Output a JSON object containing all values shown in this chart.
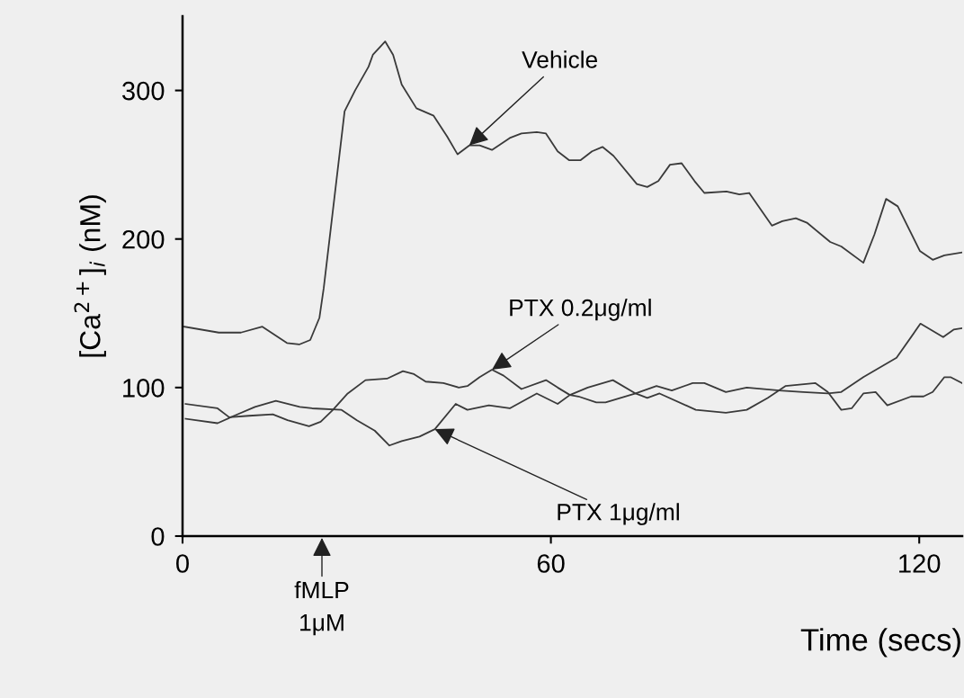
{
  "chart_data": {
    "type": "line",
    "xlabel": "Time (secs)",
    "ylabel": "[Ca$^{2+}$]$_{i}$ (nM)",
    "xlim": [
      0,
      127
    ],
    "ylim": [
      0,
      350
    ],
    "xticks": [
      0,
      60,
      120
    ],
    "yticks": [
      0,
      100,
      200,
      300
    ],
    "grid": false,
    "legend": false,
    "marker": "none",
    "line_style": "solid",
    "series": [
      {
        "color": "#3a3a3a",
        "x": [
          0.3,
          5.9,
          9.5,
          13,
          17,
          19,
          20.8,
          22.3,
          23,
          26.4,
          28.1,
          30.3,
          31,
          33,
          34.3,
          35.7,
          38.1,
          40.9,
          43.1,
          44.8,
          46.7,
          48.4,
          50.4,
          53.3,
          55.2,
          57.7,
          59.2,
          61.1,
          63,
          64.8,
          66.7,
          68.4,
          70.2,
          74,
          75.7,
          77.5,
          79.4,
          81.3,
          83.4,
          85,
          88.6,
          90.7,
          92.3,
          96,
          97.7,
          99.9,
          101.7,
          105.5,
          107.3,
          110.9,
          112.7,
          114.6,
          116.5,
          120.1,
          122.2,
          124.1,
          127
        ],
        "values": [
          141,
          137,
          137,
          141,
          130,
          129,
          132,
          147,
          167,
          286,
          300,
          316,
          324,
          333,
          324,
          304,
          288,
          283,
          269,
          257,
          263,
          263,
          260,
          268,
          271,
          272,
          271,
          259,
          253,
          253,
          259,
          262,
          256,
          237,
          235,
          239,
          250,
          251,
          239,
          231,
          232,
          230,
          231,
          209,
          212,
          214,
          211,
          198,
          195,
          184,
          203,
          227,
          222,
          192,
          186,
          189,
          191
        ]
      },
      {
        "color": "#3a3a3a",
        "x": [
          0.5,
          5.7,
          7.6,
          10.8,
          14.7,
          17.1,
          20.6,
          22.5,
          24.5,
          26.9,
          29.8,
          33.3,
          35.9,
          37.7,
          39.6,
          42.5,
          45,
          46.4,
          48.4,
          50.4,
          52.3,
          55.2,
          59.2,
          61.1,
          63.1,
          64.5,
          67.4,
          68.9,
          73.8,
          77.2,
          79.7,
          83.1,
          85,
          88.5,
          91.9,
          97.2,
          101.1,
          105.1,
          107.3,
          110.9,
          116.3,
          120.2,
          123.9,
          125.6,
          127
        ],
        "values": [
          89,
          86,
          80,
          81,
          82,
          78,
          74,
          77,
          85,
          96,
          105,
          106,
          111,
          109,
          104,
          103,
          100,
          101,
          107,
          112,
          108,
          99,
          105,
          100,
          95,
          94,
          90,
          90,
          96,
          101,
          98,
          103,
          103,
          97,
          100,
          98,
          97,
          96,
          97,
          107,
          120,
          143,
          134,
          139,
          140
        ]
      },
      {
        "color": "#3a3a3a",
        "x": [
          0.5,
          5.7,
          8.4,
          11.8,
          15.2,
          19.1,
          21.1,
          25.9,
          28.4,
          31.3,
          33.7,
          35.7,
          38.6,
          41.1,
          44.5,
          46.4,
          49.9,
          53.3,
          57.7,
          61.1,
          63.1,
          66,
          70.1,
          73.8,
          75.7,
          77.7,
          83.6,
          88.5,
          91.9,
          95.3,
          98.2,
          103.1,
          105.1,
          107.3,
          109,
          110.9,
          112.9,
          114.8,
          118.7,
          120.7,
          122.2,
          124.1,
          125.1,
          127
        ],
        "values": [
          79,
          76,
          81,
          87,
          91,
          87,
          86,
          85,
          78,
          71,
          61,
          64,
          67,
          72,
          89,
          85,
          88,
          86,
          96,
          89,
          95,
          100,
          105,
          96,
          93,
          96,
          85,
          83,
          85,
          93,
          101,
          103,
          97,
          85,
          86,
          96,
          97,
          88,
          94,
          94,
          97,
          107,
          107,
          103
        ]
      }
    ],
    "annotations": [
      {
        "text": "Vehicle",
        "x": 46.7,
        "y": 263
      },
      {
        "text": "PTX 0.2μg/ml",
        "x": 50.4,
        "y": 112
      },
      {
        "text": "PTX 1μg/ml",
        "x": 41.1,
        "y": 72
      },
      "fMLP\n1μM"
    ]
  }
}
